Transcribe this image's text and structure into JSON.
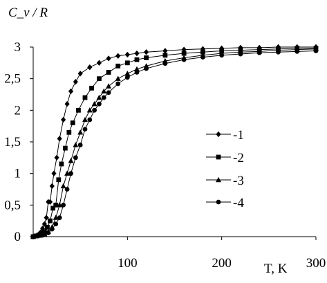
{
  "chart_data": {
    "type": "line",
    "ylabel": "C_v / R",
    "xlabel": "T, K",
    "xlim": [
      0,
      300
    ],
    "ylim": [
      0,
      3
    ],
    "x_ticks": [
      "100",
      "200",
      "300"
    ],
    "y_ticks": [
      "0",
      "0,5",
      "1",
      "1,5",
      "2",
      "2,5",
      "3"
    ],
    "grid": false,
    "legend_position": "right-middle",
    "series": [
      {
        "name": "-1",
        "marker": "diamond",
        "points": [
          [
            0,
            0
          ],
          [
            2,
            0.01
          ],
          [
            4,
            0.02
          ],
          [
            6,
            0.04
          ],
          [
            8,
            0.07
          ],
          [
            10,
            0.13
          ],
          [
            12,
            0.2
          ],
          [
            14,
            0.3
          ],
          [
            16,
            0.55
          ],
          [
            18,
            0.55
          ],
          [
            20,
            0.8
          ],
          [
            22,
            1
          ],
          [
            25,
            1.25
          ],
          [
            28,
            1.55
          ],
          [
            32,
            1.85
          ],
          [
            36,
            2.1
          ],
          [
            40,
            2.3
          ],
          [
            45,
            2.45
          ],
          [
            50,
            2.58
          ],
          [
            60,
            2.68
          ],
          [
            70,
            2.75
          ],
          [
            80,
            2.82
          ],
          [
            90,
            2.86
          ],
          [
            100,
            2.88
          ],
          [
            110,
            2.9
          ],
          [
            120,
            2.92
          ],
          [
            140,
            2.94
          ],
          [
            160,
            2.96
          ],
          [
            180,
            2.97
          ],
          [
            200,
            2.98
          ],
          [
            220,
            2.99
          ],
          [
            240,
            2.99
          ],
          [
            260,
            3
          ],
          [
            280,
            3
          ],
          [
            300,
            3
          ]
        ]
      },
      {
        "name": "-2",
        "marker": "square",
        "points": [
          [
            0,
            0
          ],
          [
            3,
            0.01
          ],
          [
            6,
            0.02
          ],
          [
            9,
            0.04
          ],
          [
            12,
            0.08
          ],
          [
            15,
            0.15
          ],
          [
            18,
            0.25
          ],
          [
            21,
            0.45
          ],
          [
            24,
            0.5
          ],
          [
            27,
            0.9
          ],
          [
            30,
            1.15
          ],
          [
            34,
            1.4
          ],
          [
            38,
            1.65
          ],
          [
            42,
            1.8
          ],
          [
            48,
            2
          ],
          [
            55,
            2.2
          ],
          [
            62,
            2.35
          ],
          [
            70,
            2.5
          ],
          [
            80,
            2.6
          ],
          [
            90,
            2.7
          ],
          [
            100,
            2.75
          ],
          [
            110,
            2.8
          ],
          [
            120,
            2.83
          ],
          [
            140,
            2.87
          ],
          [
            160,
            2.9
          ],
          [
            180,
            2.92
          ],
          [
            200,
            2.94
          ],
          [
            220,
            2.95
          ],
          [
            240,
            2.96
          ],
          [
            260,
            2.97
          ],
          [
            280,
            2.98
          ],
          [
            300,
            2.98
          ]
        ]
      },
      {
        "name": "-3",
        "marker": "triangle",
        "points": [
          [
            0,
            0
          ],
          [
            4,
            0.01
          ],
          [
            8,
            0.02
          ],
          [
            12,
            0.04
          ],
          [
            16,
            0.08
          ],
          [
            20,
            0.15
          ],
          [
            24,
            0.3
          ],
          [
            28,
            0.5
          ],
          [
            32,
            0.8
          ],
          [
            36,
            1
          ],
          [
            40,
            1.2
          ],
          [
            45,
            1.45
          ],
          [
            50,
            1.65
          ],
          [
            55,
            1.85
          ],
          [
            60,
            2
          ],
          [
            65,
            2.1
          ],
          [
            70,
            2.2
          ],
          [
            75,
            2.3
          ],
          [
            80,
            2.38
          ],
          [
            90,
            2.5
          ],
          [
            100,
            2.58
          ],
          [
            110,
            2.65
          ],
          [
            120,
            2.7
          ],
          [
            140,
            2.78
          ],
          [
            160,
            2.83
          ],
          [
            180,
            2.87
          ],
          [
            200,
            2.9
          ],
          [
            220,
            2.92
          ],
          [
            240,
            2.93
          ],
          [
            260,
            2.95
          ],
          [
            280,
            2.96
          ],
          [
            300,
            2.97
          ]
        ]
      },
      {
        "name": "-4",
        "marker": "circle",
        "points": [
          [
            0,
            0
          ],
          [
            4,
            0.01
          ],
          [
            8,
            0.02
          ],
          [
            12,
            0.03
          ],
          [
            16,
            0.06
          ],
          [
            20,
            0.12
          ],
          [
            24,
            0.2
          ],
          [
            28,
            0.3
          ],
          [
            32,
            0.5
          ],
          [
            36,
            0.75
          ],
          [
            40,
            1
          ],
          [
            45,
            1.25
          ],
          [
            50,
            1.45
          ],
          [
            55,
            1.7
          ],
          [
            60,
            1.85
          ],
          [
            65,
            2
          ],
          [
            70,
            2.1
          ],
          [
            75,
            2.2
          ],
          [
            80,
            2.28
          ],
          [
            90,
            2.42
          ],
          [
            100,
            2.52
          ],
          [
            110,
            2.6
          ],
          [
            120,
            2.66
          ],
          [
            140,
            2.74
          ],
          [
            160,
            2.8
          ],
          [
            180,
            2.84
          ],
          [
            200,
            2.87
          ],
          [
            220,
            2.89
          ],
          [
            240,
            2.91
          ],
          [
            260,
            2.92
          ],
          [
            280,
            2.93
          ],
          [
            300,
            2.94
          ]
        ]
      }
    ]
  }
}
